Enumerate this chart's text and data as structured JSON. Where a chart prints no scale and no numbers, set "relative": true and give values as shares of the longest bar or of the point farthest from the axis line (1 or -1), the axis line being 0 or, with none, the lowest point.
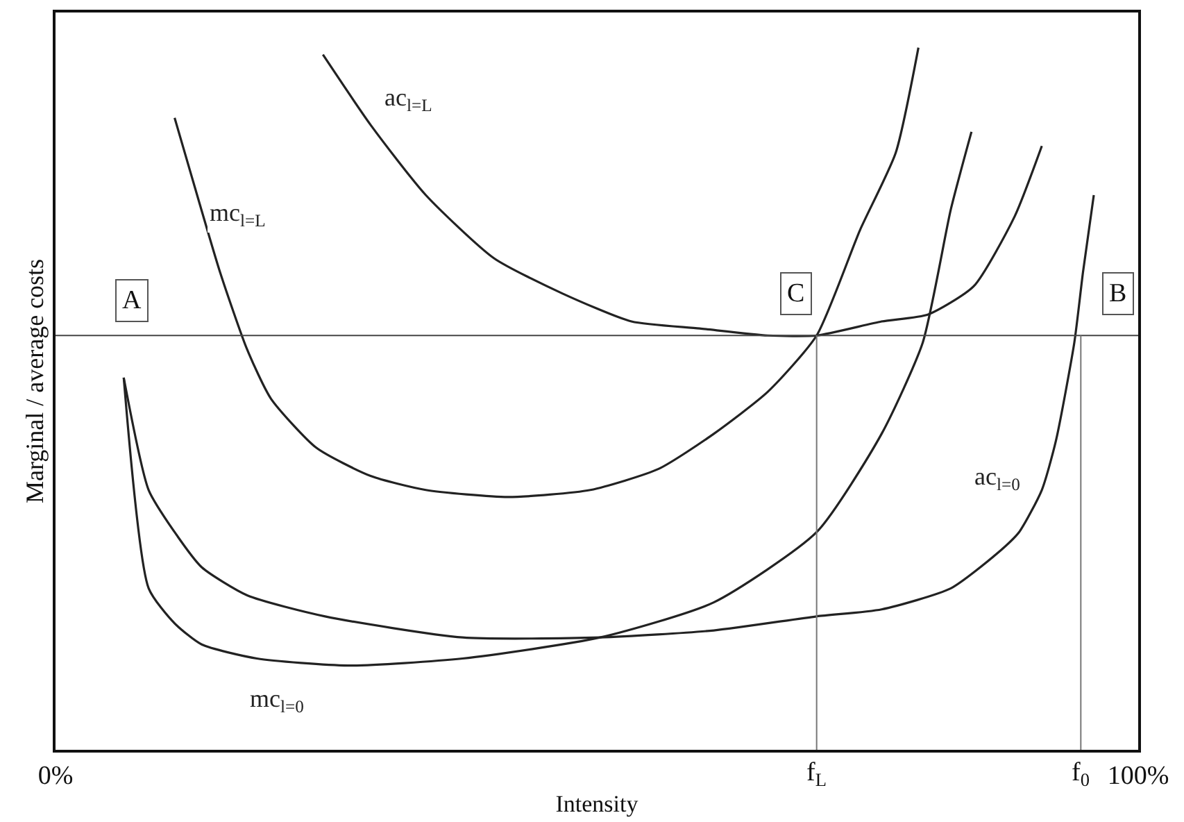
{
  "chart_data": {
    "type": "line",
    "relative": true,
    "xlabel": "Intensity",
    "ylabel": "Marginal / average costs",
    "xlim": [
      0,
      100
    ],
    "xticks": [
      {
        "value": 0,
        "label": "0%"
      },
      {
        "value": 100,
        "label": "100%"
      }
    ],
    "legend": false,
    "marker": "none",
    "line_style": "solid",
    "series": [
      {
        "name": "mc$_{l=L}$",
        "color": "#222222",
        "x": [
          11.0,
          12.7,
          15.2,
          17.7,
          19.9,
          24.1,
          29.1,
          34.2,
          41.8,
          49.4,
          55.7,
          60.8,
          65.8,
          70.3,
          74.3,
          77.6,
          79.7
        ],
        "values": [
          0.9,
          0.81,
          0.68,
          0.57,
          0.5,
          0.43,
          0.39,
          0.37,
          0.36,
          0.37,
          0.4,
          0.45,
          0.51,
          0.59,
          0.74,
          0.85,
          1.0
        ]
      },
      {
        "name": "ac$_{l=L}$",
        "color": "#222222",
        "x": [
          24.7,
          29.1,
          34.2,
          40.5,
          46.8,
          53.2,
          59.5,
          65.8,
          70.3,
          76.3,
          80.6,
          84.8,
          88.6,
          91.1
        ],
        "values": [
          0.99,
          0.89,
          0.79,
          0.7,
          0.65,
          0.61,
          0.6,
          0.59,
          0.59,
          0.61,
          0.62,
          0.66,
          0.76,
          0.86
        ]
      },
      {
        "name": "mc$_{l=0}$",
        "color": "#222222",
        "x": [
          6.3,
          8.6,
          11.0,
          13.5,
          18.6,
          27.0,
          37.6,
          50.3,
          60.8,
          70.3,
          76.3,
          80.1,
          82.7,
          84.6
        ],
        "values": [
          0.53,
          0.23,
          0.18,
          0.15,
          0.13,
          0.12,
          0.13,
          0.16,
          0.21,
          0.31,
          0.45,
          0.58,
          0.77,
          0.88
        ]
      },
      {
        "name": "ac$_{l=0}$",
        "color": "#222222",
        "x": [
          6.3,
          8.6,
          11.0,
          13.5,
          17.7,
          24.9,
          37.6,
          50.3,
          60.8,
          70.3,
          76.3,
          82.7,
          87.0,
          89.0,
          91.1,
          92.4,
          94.1,
          94.9,
          95.9
        ],
        "values": [
          0.53,
          0.37,
          0.31,
          0.26,
          0.22,
          0.19,
          0.16,
          0.16,
          0.17,
          0.19,
          0.2,
          0.23,
          0.28,
          0.31,
          0.37,
          0.44,
          0.58,
          0.68,
          0.79
        ]
      }
    ],
    "ref_lines": [
      {
        "axis": "y",
        "value": 0.59,
        "color": "#444444"
      },
      {
        "axis": "x",
        "value": 70.3,
        "label": "f$_{L}$",
        "color": "#777777"
      },
      {
        "axis": "x",
        "value": 94.7,
        "label": "f$_{0}$",
        "color": "#777777"
      }
    ],
    "annotations": [
      {
        "text": "A",
        "x": 7.0,
        "y": 0.64
      },
      {
        "text": "C",
        "x": 68.4,
        "y": 0.65
      },
      {
        "text": "B",
        "x": 98.1,
        "y": 0.65
      }
    ]
  }
}
